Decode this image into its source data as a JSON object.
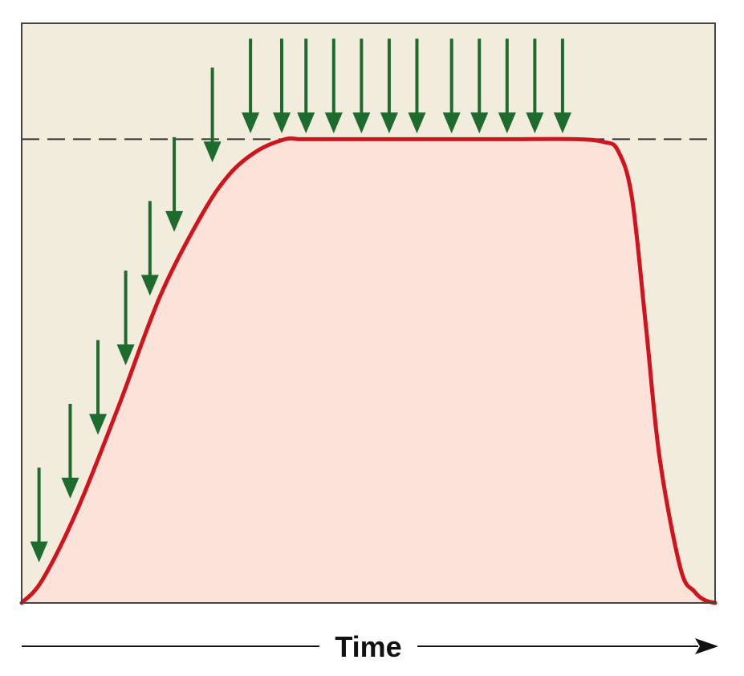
{
  "chart_data": {
    "type": "area",
    "xlabel": "Time",
    "ylabel": "",
    "title": "",
    "xlim": [
      0,
      100
    ],
    "ylim": [
      0,
      100
    ],
    "grid": false,
    "legend": "none",
    "threshold": 80,
    "curve": {
      "x": [
        0,
        3,
        8,
        14,
        20,
        26,
        30,
        34,
        38,
        40,
        42,
        50,
        60,
        70,
        80,
        84,
        86,
        88,
        90,
        92,
        95,
        97,
        98.5,
        100
      ],
      "y": [
        0,
        4,
        16,
        34,
        53,
        67,
        74,
        78,
        80,
        80,
        80,
        80,
        80,
        80,
        80,
        79.5,
        78,
        70,
        48,
        25,
        6,
        2,
        0.5,
        0
      ]
    },
    "stimuli": {
      "x": [
        2.5,
        7,
        11,
        15,
        18.5,
        22,
        27.5,
        33,
        37.5,
        41,
        45,
        49,
        53,
        57,
        62,
        66,
        70,
        74,
        78
      ],
      "tip_y": [
        7,
        18,
        29,
        41,
        53,
        64,
        76,
        81,
        81,
        81,
        81,
        81,
        81,
        81,
        81,
        81,
        81,
        81,
        81
      ]
    },
    "colors": {
      "background": "#f1ecdc",
      "fill": "#fce2d8",
      "curve": "#d0141e",
      "arrow": "#1e6b2e",
      "threshold_line": "#333333",
      "frame": "#444444"
    }
  }
}
